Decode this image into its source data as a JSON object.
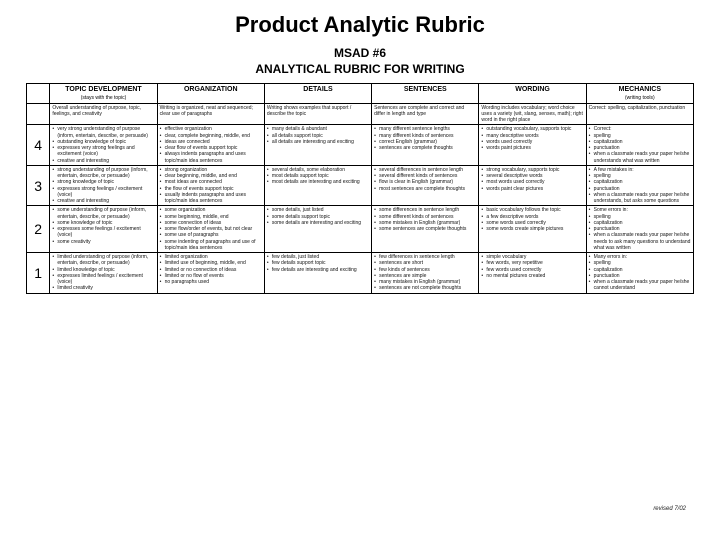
{
  "title": "Product Analytic Rubric",
  "doc_header_line1": "MSAD #6",
  "doc_header_line2": "ANALYTICAL RUBRIC FOR WRITING",
  "columns": [
    {
      "label": "TOPIC DEVELOPMENT",
      "sub": "(stays with the topic)"
    },
    {
      "label": "ORGANIZATION",
      "sub": ""
    },
    {
      "label": "DETAILS",
      "sub": ""
    },
    {
      "label": "SENTENCES",
      "sub": ""
    },
    {
      "label": "WORDING",
      "sub": ""
    },
    {
      "label": "MECHANICS",
      "sub": "(writing tools)"
    }
  ],
  "overall_row": [
    "Overall understanding of purpose, topic, feelings, and creativity",
    "Writing is organized, neat and sequenced; clear use of paragraphs",
    "Writing shows examples that support / describe the topic",
    "Sentences are complete and correct and differ in length and type",
    "Wording includes vocabulary; word choice uses a variety (wit, slang, senses, math); right word in the right place",
    "Correct: spelling, capitalization, punctuation"
  ],
  "rows": [
    {
      "score": "4",
      "cells": [
        [
          "very strong understanding of purpose (inform, entertain, describe, or persuade)",
          "outstanding knowledge of topic",
          "expresses very strong feelings and excitement (voice)",
          "creative and interesting"
        ],
        [
          "effective organization",
          "clear, complete beginning, middle, end",
          "ideas are connected",
          "clear flow of events support topic",
          "always indents paragraphs and uses topic/main idea sentences"
        ],
        [
          "many details & abundant",
          "all details support topic",
          "all details are interesting and exciting"
        ],
        [
          "many different sentence lengths",
          "many different kinds of sentences",
          "correct English (grammar)",
          "sentences are complete thoughts"
        ],
        [
          "outstanding vocabulary, supports topic",
          "many descriptive words",
          "words used correctly",
          "words paint pictures"
        ],
        [
          "Correct:",
          "spelling",
          "capitalization",
          "punctuation",
          "when a classmate reads your paper he/she understands what was written"
        ]
      ]
    },
    {
      "score": "3",
      "cells": [
        [
          "strong understanding of purpose (inform, entertain, describe, or persuade)",
          "strong knowledge of topic",
          "expresses strong feelings / excitement (voice)",
          "creative and interesting"
        ],
        [
          "strong organization",
          "clear beginning, middle, and end",
          "most ideas are connected",
          "the flow of events support topic",
          "usually indents paragraphs and uses topic/main idea sentences"
        ],
        [
          "several details, some elaboration",
          "most details support topic",
          "most details are interesting and exciting"
        ],
        [
          "several differences in sentence length",
          "several different kinds of sentences",
          "flow is clear in English (grammar)",
          "most sentences are complete thoughts"
        ],
        [
          "strong vocabulary, supports topic",
          "several descriptive words",
          "most words used correctly",
          "words paint clear pictures"
        ],
        [
          "A few mistakes in:",
          "spelling",
          "capitalization",
          "punctuation",
          "when a classmate reads your paper he/she understands, but asks some questions"
        ]
      ]
    },
    {
      "score": "2",
      "cells": [
        [
          "some understanding of purpose (inform, entertain, describe, or persuade)",
          "some knowledge of topic",
          "expresses some feelings / excitement (voice)",
          "some creativity"
        ],
        [
          "some organization",
          "some beginning, middle, end",
          "some connection of ideas",
          "some flow/order of events, but not clear",
          "some use of paragraphs",
          "some indenting of paragraphs and use of topic/main idea sentences"
        ],
        [
          "some details, just listed",
          "some details support topic",
          "some details are interesting and exciting"
        ],
        [
          "some differences in sentence length",
          "some different kinds of sentences",
          "some mistakes in English (grammar)",
          "some sentences are complete thoughts"
        ],
        [
          "basic vocabulary follows the topic",
          "a few descriptive words",
          "some words used correctly",
          "some words create simple pictures"
        ],
        [
          "Some errors in:",
          "spelling",
          "capitalization",
          "punctuation",
          "when a classmate reads your paper he/she needs to ask many questions to understand what was written"
        ]
      ]
    },
    {
      "score": "1",
      "cells": [
        [
          "limited understanding of purpose (inform, entertain, describe, or persuade)",
          "limited knowledge of topic",
          "expresses limited feelings / excitement (voice)",
          "limited creativity"
        ],
        [
          "limited organization",
          "limited use of beginning, middle, end",
          "limited or no connection of ideas",
          "limited or no flow of events",
          "no paragraphs used"
        ],
        [
          "few details, just listed",
          "few details support topic",
          "few details are interesting and exciting"
        ],
        [
          "few differences in sentence length",
          "sentences are short",
          "few kinds of sentences",
          "sentences are simple",
          "many mistakes in English (grammar)",
          "sentences are not complete thoughts"
        ],
        [
          "simple vocabulary",
          "few words, very repetitive",
          "few words used correctly",
          "no mental pictures created"
        ],
        [
          "Many errors in:",
          "spelling",
          "capitalization",
          "punctuation",
          "when a classmate reads your paper he/she cannot understand"
        ]
      ]
    }
  ],
  "footer": "revised 7/02"
}
